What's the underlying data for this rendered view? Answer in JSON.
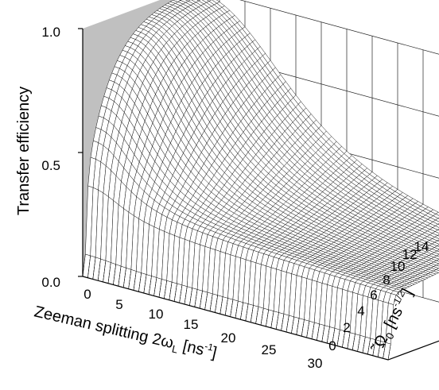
{
  "chart_data": {
    "type": "surface",
    "zlabel": "Transfer efficiency",
    "xlabel": {
      "pre": "Zeeman splitting 2ω",
      "sub": "L",
      "mid": " [ns",
      "sup": "-1",
      "post": "]"
    },
    "ylabel": {
      "pre": "˜Ω",
      "sub": "0",
      "mid": " [ns",
      "sup": "-1/2",
      "post": "]"
    },
    "x_ticks": [
      "0",
      "5",
      "10",
      "15",
      "20",
      "25",
      "30"
    ],
    "y_ticks": [
      "0",
      "2",
      "4",
      "6",
      "8",
      "10",
      "12",
      "14"
    ],
    "z_ticks": [
      "0.0",
      "0.5",
      "1.0"
    ],
    "xlim": [
      0,
      30
    ],
    "ylim": [
      0,
      14
    ],
    "zlim": [
      0,
      1
    ],
    "grid": true,
    "surface_shape": {
      "low_omega_plateau": 0.3,
      "high_omega_peak": 1.0,
      "efficiency_near_1_for_small_splitting_and_large_omega": true,
      "decays_with_increasing_splitting": true,
      "zero_at_omega_0": true
    },
    "colors": {
      "background": "#ffffff",
      "back_wall": "#c0c0c0",
      "surface": "#ffffff",
      "mesh": "#111111"
    }
  }
}
